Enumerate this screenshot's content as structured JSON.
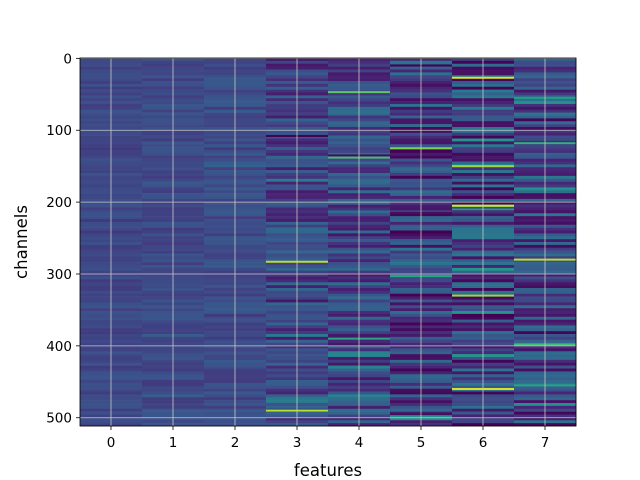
{
  "chart_data": {
    "type": "heatmap",
    "title": "",
    "xlabel": "features",
    "ylabel": "channels",
    "x_categories": [
      "0",
      "1",
      "2",
      "3",
      "4",
      "5",
      "6",
      "7"
    ],
    "y_ticks": [
      0,
      100,
      200,
      300,
      400,
      500
    ],
    "y_range": [
      0,
      511
    ],
    "rows": 512,
    "colormap": "viridis",
    "grid": true,
    "y_axis_inverted": true,
    "column_variation": [
      0.15,
      0.18,
      0.22,
      0.55,
      0.6,
      0.85,
      0.9,
      0.8
    ],
    "column_base": [
      0.22,
      0.23,
      0.24,
      0.22,
      0.23,
      0.2,
      0.21,
      0.22
    ],
    "highlights": [
      {
        "col": 5,
        "row": 10,
        "value": 0.0
      },
      {
        "col": 6,
        "row": 27,
        "value": 0.95
      },
      {
        "col": 4,
        "row": 47,
        "value": 0.75
      },
      {
        "col": 7,
        "row": 55,
        "value": 0.55
      },
      {
        "col": 3,
        "row": 108,
        "value": 0.0
      },
      {
        "col": 7,
        "row": 118,
        "value": 0.65
      },
      {
        "col": 5,
        "row": 125,
        "value": 0.8
      },
      {
        "col": 4,
        "row": 135,
        "value": 0.05
      },
      {
        "col": 6,
        "row": 150,
        "value": 0.85
      },
      {
        "col": 4,
        "row": 138,
        "value": 0.7
      },
      {
        "col": 6,
        "row": 205,
        "value": 0.95
      },
      {
        "col": 6,
        "row": 210,
        "value": 0.55
      },
      {
        "col": 5,
        "row": 215,
        "value": 0.05
      },
      {
        "col": 3,
        "row": 283,
        "value": 0.9
      },
      {
        "col": 7,
        "row": 280,
        "value": 0.9
      },
      {
        "col": 5,
        "row": 303,
        "value": 0.6
      },
      {
        "col": 6,
        "row": 330,
        "value": 0.85
      },
      {
        "col": 4,
        "row": 390,
        "value": 0.6
      },
      {
        "col": 7,
        "row": 398,
        "value": 0.7
      },
      {
        "col": 6,
        "row": 460,
        "value": 0.95
      },
      {
        "col": 7,
        "row": 455,
        "value": 0.6
      },
      {
        "col": 3,
        "row": 490,
        "value": 0.9
      },
      {
        "col": 5,
        "row": 495,
        "value": 0.05
      }
    ]
  }
}
